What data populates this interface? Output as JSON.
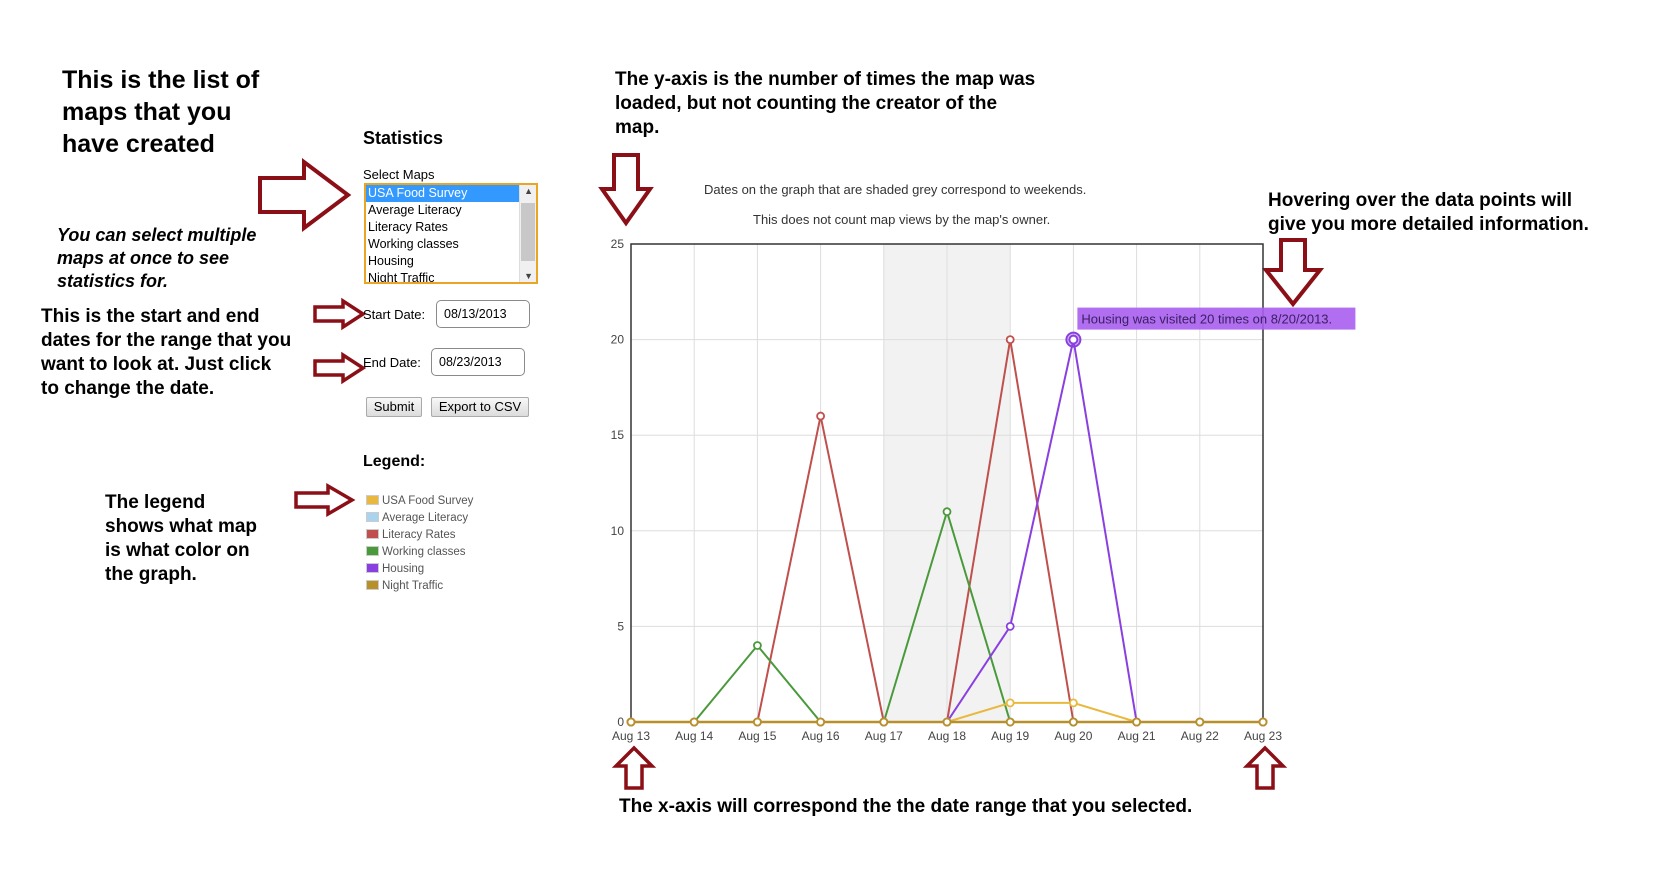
{
  "notes": {
    "maps_list": [
      "This is the list of",
      "maps that you",
      "have created"
    ],
    "multi_select": [
      "You can select multiple",
      "maps at once to see",
      "statistics for."
    ],
    "dates": [
      "This is the start and end",
      "dates for the range that you",
      "want to look at. Just click",
      "to change the date."
    ],
    "legend": [
      "The legend",
      "shows what map",
      "is what color on",
      "the graph."
    ],
    "yaxis": [
      "The y-axis is the number of times the map was",
      "loaded, but not counting the creator of the",
      "map."
    ],
    "hover": [
      "Hovering over the data points will",
      "give you more detailed information."
    ],
    "xaxis": "The x-axis will correspond the the date range that you selected."
  },
  "panel": {
    "title": "Statistics",
    "select_label": "Select Maps",
    "maps": [
      "USA Food Survey",
      "Average Literacy",
      "Literacy Rates",
      "Working classes",
      "Housing",
      "Night Traffic"
    ],
    "selected_map": "USA Food Survey",
    "start_label": "Start Date:",
    "start_value": "08/13/2013",
    "end_label": "End Date:",
    "end_value": "08/23/2013",
    "submit_label": "Submit",
    "export_label": "Export to CSV",
    "legend_title": "Legend:"
  },
  "colors": {
    "arrow": "#8b0f16",
    "listbox_border": "#e8a526",
    "selection": "#3399ff",
    "weekend_shade": "#f2f2f2",
    "tooltip_bg": "#a85ef0"
  },
  "chart_data": {
    "type": "line",
    "subtitle_1": "Dates on the graph that are shaded grey correspond to weekends.",
    "subtitle_2": "This does not count map views by the map's owner.",
    "categories": [
      "Aug 13",
      "Aug 14",
      "Aug 15",
      "Aug 16",
      "Aug 17",
      "Aug 18",
      "Aug 19",
      "Aug 20",
      "Aug 21",
      "Aug 22",
      "Aug 23"
    ],
    "ylim": [
      0,
      25
    ],
    "yticks": [
      0,
      5,
      10,
      15,
      20,
      25
    ],
    "weekend_range": [
      "Aug 17",
      "Aug 19"
    ],
    "grid": true,
    "series": [
      {
        "name": "USA Food Survey",
        "color": "#e8b93e",
        "values": [
          0,
          0,
          0,
          0,
          0,
          0,
          1,
          1,
          0,
          0,
          0
        ]
      },
      {
        "name": "Average Literacy",
        "color": "#a9d3ee",
        "values": [
          0,
          0,
          0,
          0,
          0,
          0,
          0,
          0,
          0,
          0,
          0
        ]
      },
      {
        "name": "Literacy Rates",
        "color": "#c0504d",
        "values": [
          0,
          0,
          0,
          16,
          0,
          0,
          20,
          0,
          0,
          0,
          0
        ]
      },
      {
        "name": "Working classes",
        "color": "#4a9a3c",
        "values": [
          0,
          0,
          4,
          0,
          0,
          11,
          0,
          0,
          0,
          0,
          0
        ]
      },
      {
        "name": "Housing",
        "color": "#8a3fe0",
        "values": [
          0,
          0,
          0,
          0,
          0,
          0,
          5,
          20,
          0,
          0,
          0
        ]
      },
      {
        "name": "Night Traffic",
        "color": "#b8902a",
        "values": [
          0,
          0,
          0,
          0,
          0,
          0,
          0,
          0,
          0,
          0,
          0
        ]
      }
    ],
    "tooltip": {
      "text": "Housing was visited 20 times on 8/20/2013.",
      "series": "Housing",
      "category": "Aug 20",
      "value": 20
    }
  }
}
